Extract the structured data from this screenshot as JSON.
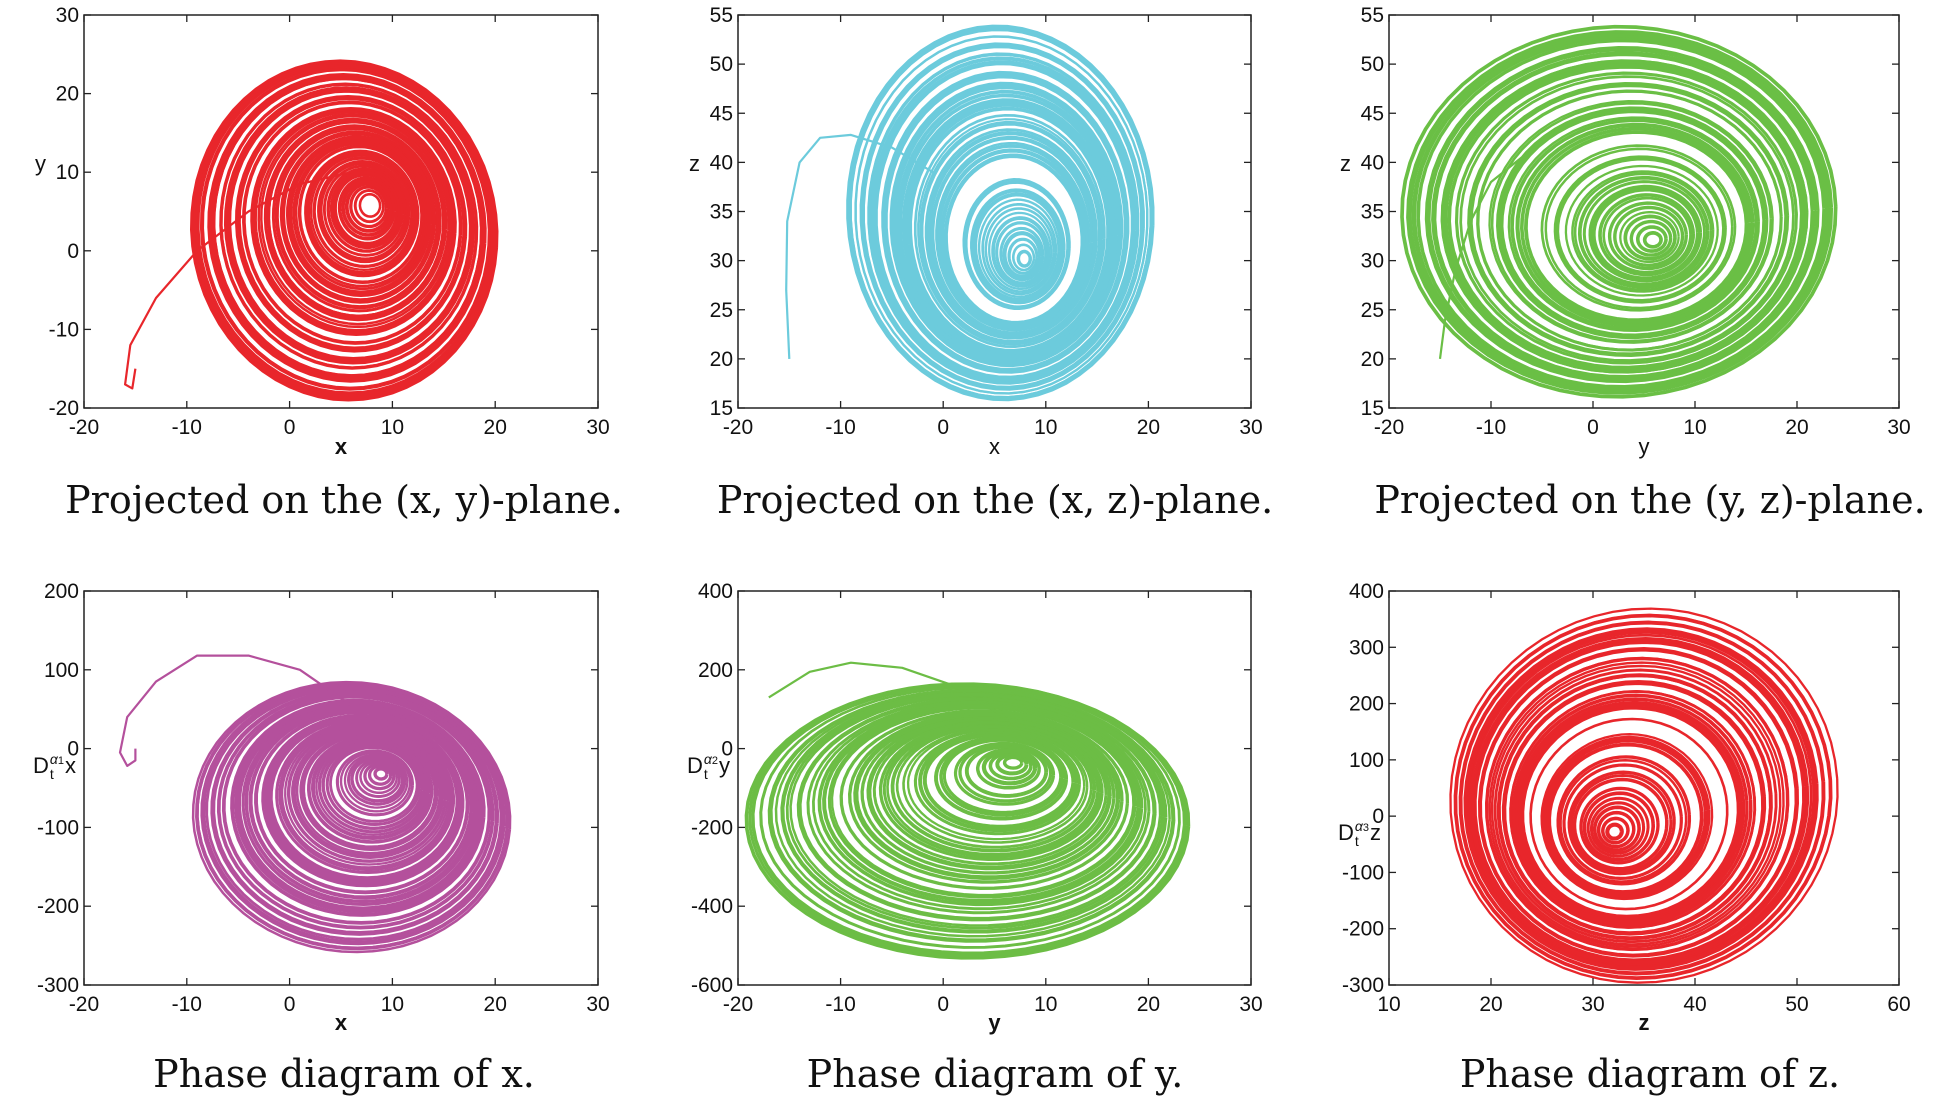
{
  "chart_data": [
    {
      "type": "line",
      "caption": "Projected on the (x, y)-plane.",
      "xlabel": "x",
      "xlabel_bold": true,
      "ylabel": {
        "text": "y"
      },
      "xlim": [
        -20,
        30
      ],
      "ylim": [
        -20,
        30
      ],
      "xticks": [
        -20,
        -10,
        0,
        10,
        20,
        30
      ],
      "yticks": [
        -20,
        -10,
        0,
        10,
        20,
        30
      ],
      "color": "#e8262b",
      "attractor": {
        "xrange": [
          -10.5,
          21
        ],
        "yrange": [
          -19.5,
          24.5
        ],
        "center": [
          8,
          6
        ],
        "tilt": -40
      },
      "transient": [
        [
          -15,
          -15
        ],
        [
          -15.3,
          -17.5
        ],
        [
          -16,
          -17
        ],
        [
          -15.5,
          -12
        ],
        [
          -13,
          -6
        ],
        [
          -9,
          0
        ],
        [
          -4,
          5
        ],
        [
          1,
          8.5
        ],
        [
          6,
          10
        ]
      ]
    },
    {
      "type": "line",
      "caption": "Projected on the (x, z)-plane.",
      "xlabel": "x",
      "xlabel_bold": false,
      "ylabel": {
        "text": "z"
      },
      "xlim": [
        -20,
        30
      ],
      "ylim": [
        15,
        55
      ],
      "xticks": [
        -20,
        -10,
        0,
        10,
        20,
        30
      ],
      "yticks": [
        15,
        20,
        25,
        30,
        35,
        40,
        45,
        50,
        55
      ],
      "color": "#6ccbdc",
      "attractor": {
        "xrange": [
          -10,
          21
        ],
        "yrange": [
          15.5,
          54.5
        ],
        "center": [
          8,
          30
        ],
        "tilt": -25
      },
      "transient": [
        [
          -15,
          20
        ],
        [
          -15.3,
          27
        ],
        [
          -15.2,
          34
        ],
        [
          -14,
          40
        ],
        [
          -12,
          42.5
        ],
        [
          -9,
          42.8
        ],
        [
          -5,
          41.5
        ],
        [
          -1,
          39
        ]
      ]
    },
    {
      "type": "line",
      "caption": "Projected on the (y, z)-plane.",
      "xlabel": "y",
      "xlabel_bold": false,
      "ylabel": {
        "text": "z"
      },
      "xlim": [
        -20,
        30
      ],
      "ylim": [
        15,
        55
      ],
      "xticks": [
        -20,
        -10,
        0,
        10,
        20,
        30
      ],
      "yticks": [
        15,
        20,
        25,
        30,
        35,
        40,
        45,
        50,
        55
      ],
      "color": "#6abf45",
      "attractor": {
        "xrange": [
          -19,
          24
        ],
        "yrange": [
          16,
          54
        ],
        "center": [
          6,
          32
        ],
        "tilt": 10
      },
      "transient": [
        [
          -15,
          20
        ],
        [
          -14.5,
          24
        ],
        [
          -13.5,
          29
        ],
        [
          -12,
          34
        ],
        [
          -10,
          38
        ],
        [
          -7,
          40.5
        ]
      ]
    },
    {
      "type": "line",
      "caption": "Phase diagram of x.",
      "xlabel": "x",
      "xlabel_bold": true,
      "ylabel": {
        "text": "D",
        "sub": "t",
        "sup": "α",
        "supsub": "1",
        "var": "x"
      },
      "xlim": [
        -20,
        30
      ],
      "ylim": [
        -300,
        200
      ],
      "xticks": [
        -20,
        -10,
        0,
        10,
        20,
        30
      ],
      "yticks": [
        -300,
        -200,
        -100,
        0,
        100,
        200
      ],
      "color": "#b4509c",
      "attractor": {
        "xrange": [
          -10,
          22
        ],
        "yrange": [
          -260,
          85
        ],
        "center": [
          9,
          -30
        ],
        "tilt": -35
      },
      "transient": [
        [
          -15,
          0
        ],
        [
          -15,
          -15
        ],
        [
          -15.8,
          -22
        ],
        [
          -16.5,
          -5
        ],
        [
          -15.8,
          40
        ],
        [
          -13,
          85
        ],
        [
          -9,
          118
        ],
        [
          -4,
          118
        ],
        [
          1,
          100
        ],
        [
          6,
          55
        ]
      ]
    },
    {
      "type": "line",
      "caption": "Phase diagram of y.",
      "xlabel": "y",
      "xlabel_bold": true,
      "ylabel": {
        "text": "D",
        "sub": "t",
        "sup": "α",
        "supsub": "2",
        "var": "y"
      },
      "xlim": [
        -20,
        30
      ],
      "ylim": [
        -600,
        400
      ],
      "xticks": [
        -20,
        -10,
        0,
        10,
        20,
        30
      ],
      "yticks": [
        -600,
        -400,
        -200,
        0,
        200,
        400
      ],
      "color": "#6cbd45",
      "attractor": {
        "xrange": [
          -20,
          24.5
        ],
        "yrange": [
          -545,
          170
        ],
        "center": [
          7,
          -30
        ],
        "tilt": -15
      },
      "transient": [
        [
          -17,
          130
        ],
        [
          -13,
          195
        ],
        [
          -9,
          218
        ],
        [
          -4,
          205
        ],
        [
          1,
          160
        ],
        [
          6,
          80
        ]
      ]
    },
    {
      "type": "line",
      "caption": "Phase diagram of z.",
      "xlabel": "z",
      "xlabel_bold": true,
      "ylabel": {
        "text": "D",
        "sub": "t",
        "sup": "α",
        "supsub": "3",
        "var": "z"
      },
      "xlim": [
        10,
        60
      ],
      "ylim": [
        -300,
        400
      ],
      "xticks": [
        10,
        20,
        30,
        40,
        50,
        60
      ],
      "yticks": [
        -300,
        -200,
        -100,
        0,
        100,
        200,
        300,
        400
      ],
      "color": "#e8262b",
      "attractor": {
        "xrange": [
          15.5,
          54.5
        ],
        "yrange": [
          -295,
          368
        ],
        "center": [
          32,
          -30
        ],
        "tilt": 35
      },
      "transient": []
    }
  ]
}
